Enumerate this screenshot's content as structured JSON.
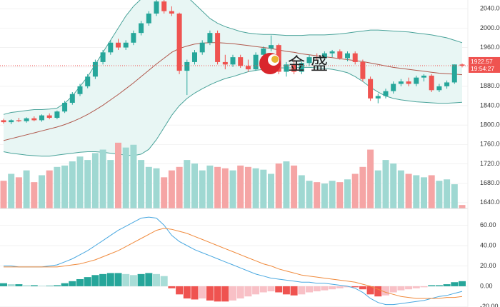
{
  "watermark": "金盛",
  "chart_data": [
    {
      "type": "candlestick",
      "open": [
        1810,
        1806,
        1810,
        1808,
        1814,
        1810,
        1820,
        1815,
        1828,
        1846,
        1864,
        1880,
        1900,
        1930,
        1950,
        1970,
        1960,
        1970,
        1990,
        2010,
        2030,
        2055,
        2035,
        2030,
        1912,
        1930,
        1950,
        1970,
        1990,
        1930,
        1925,
        1940,
        1922,
        1915,
        1945,
        1958,
        1965,
        1910,
        1925,
        1910,
        1928,
        1940,
        1938,
        1948,
        1952,
        1938,
        1948,
        1930,
        1895,
        1855,
        1860,
        1870,
        1885,
        1890,
        1885,
        1898,
        1902,
        1872,
        1880,
        1888,
        1925
      ],
      "high": [
        1813,
        1812,
        1815,
        1816,
        1818,
        1822,
        1824,
        1830,
        1850,
        1868,
        1885,
        1905,
        1935,
        1955,
        1975,
        1978,
        1975,
        1995,
        2015,
        2035,
        2058,
        2060,
        2045,
        2032,
        1935,
        1955,
        1975,
        1995,
        1995,
        1945,
        1945,
        1945,
        1935,
        1950,
        1962,
        1985,
        1968,
        1930,
        1935,
        1932,
        1945,
        1948,
        1952,
        1955,
        1956,
        1952,
        1952,
        1935,
        1900,
        1865,
        1875,
        1890,
        1895,
        1898,
        1902,
        1905,
        1905,
        1885,
        1892,
        1925,
        1927
      ],
      "low": [
        1803,
        1802,
        1806,
        1805,
        1808,
        1807,
        1812,
        1812,
        1825,
        1842,
        1860,
        1876,
        1895,
        1925,
        1945,
        1955,
        1955,
        1965,
        1985,
        2005,
        2025,
        2030,
        2025,
        1905,
        1862,
        1925,
        1945,
        1965,
        1925,
        1915,
        1920,
        1918,
        1910,
        1912,
        1940,
        1952,
        1905,
        1900,
        1905,
        1905,
        1922,
        1935,
        1934,
        1940,
        1935,
        1932,
        1925,
        1890,
        1850,
        1845,
        1855,
        1865,
        1880,
        1880,
        1880,
        1890,
        1868,
        1868,
        1875,
        1885,
        1919
      ],
      "close": [
        1806,
        1810,
        1808,
        1814,
        1810,
        1820,
        1815,
        1828,
        1846,
        1864,
        1880,
        1900,
        1930,
        1950,
        1970,
        1960,
        1970,
        1990,
        2010,
        2030,
        2055,
        2035,
        2030,
        1912,
        1930,
        1950,
        1970,
        1990,
        1930,
        1925,
        1940,
        1922,
        1915,
        1945,
        1958,
        1965,
        1910,
        1925,
        1910,
        1928,
        1940,
        1938,
        1948,
        1952,
        1938,
        1948,
        1930,
        1895,
        1855,
        1860,
        1870,
        1885,
        1890,
        1885,
        1898,
        1902,
        1872,
        1880,
        1888,
        1925,
        1922.57
      ],
      "up_color": "#26a69a",
      "down_color": "#ef5350",
      "bands": {
        "upper": [
          1822,
          1826,
          1828,
          1830,
          1832,
          1832,
          1833,
          1835,
          1845,
          1860,
          1880,
          1900,
          1925,
          1950,
          1975,
          2000,
          2025,
          2045,
          2060,
          2075,
          2085,
          2090,
          2088,
          2080,
          2065,
          2050,
          2035,
          2020,
          2010,
          2003,
          1998,
          1993,
          1990,
          1988,
          1987,
          1987,
          1986,
          1985,
          1985,
          1985,
          1986,
          1986,
          1986,
          1987,
          1988,
          1990,
          1992,
          1994,
          1996,
          1996,
          1995,
          1994,
          1993,
          1992,
          1990,
          1988,
          1986,
          1983,
          1980,
          1975,
          1970
        ],
        "middle": [
          1768,
          1772,
          1776,
          1780,
          1784,
          1788,
          1792,
          1796,
          1801,
          1807,
          1814,
          1822,
          1831,
          1841,
          1852,
          1863,
          1875,
          1887,
          1900,
          1913,
          1926,
          1938,
          1950,
          1958,
          1963,
          1967,
          1969,
          1970,
          1970,
          1969,
          1968,
          1966,
          1964,
          1962,
          1960,
          1958,
          1955,
          1952,
          1950,
          1947,
          1945,
          1943,
          1941,
          1939,
          1937,
          1935,
          1933,
          1931,
          1928,
          1925,
          1922,
          1919,
          1917,
          1915,
          1913,
          1911,
          1909,
          1907,
          1906,
          1905,
          1904
        ],
        "lower": [
          1745,
          1742,
          1740,
          1738,
          1737,
          1736,
          1736,
          1738,
          1740,
          1742,
          1744,
          1745,
          1745,
          1744,
          1742,
          1740,
          1738,
          1737,
          1740,
          1750,
          1770,
          1795,
          1820,
          1840,
          1855,
          1866,
          1875,
          1883,
          1890,
          1896,
          1900,
          1905,
          1910,
          1913,
          1915,
          1917,
          1918,
          1918,
          1918,
          1919,
          1919,
          1918,
          1917,
          1915,
          1912,
          1908,
          1900,
          1890,
          1878,
          1868,
          1860,
          1855,
          1852,
          1850,
          1848,
          1847,
          1846,
          1845,
          1845,
          1846,
          1847
        ],
        "color": "#4aa39a",
        "middle_color": "#b0584c",
        "fill": "#e8f6f4"
      },
      "ylim": [
        1628,
        2058
      ],
      "yticks": [
        {
          "value": 2040,
          "label": "2040.00"
        },
        {
          "value": 2000,
          "label": "2000.00"
        },
        {
          "value": 1960,
          "label": "1960.00"
        },
        {
          "value": 1920,
          "label": "1920.00"
        },
        {
          "value": 1880,
          "label": "1880.00"
        },
        {
          "value": 1840,
          "label": "1840.00"
        },
        {
          "value": 1800,
          "label": "1800.00"
        },
        {
          "value": 1760,
          "label": "1760.00"
        },
        {
          "value": 1720,
          "label": "1720.00"
        },
        {
          "value": 1680,
          "label": "1680.00"
        },
        {
          "value": 1640,
          "label": "1640.00"
        }
      ],
      "grid": true,
      "last_price": 1922.57,
      "countdown": "19:54:27"
    },
    {
      "type": "bar",
      "values": [
        40,
        50,
        45,
        55,
        38,
        48,
        55,
        60,
        62,
        68,
        75,
        70,
        80,
        85,
        70,
        95,
        88,
        92,
        70,
        60,
        58,
        45,
        55,
        60,
        70,
        65,
        55,
        62,
        60,
        58,
        55,
        62,
        60,
        58,
        56,
        50,
        65,
        68,
        62,
        48,
        40,
        38,
        36,
        40,
        38,
        42,
        50,
        60,
        85,
        55,
        70,
        65,
        55,
        50,
        48,
        45,
        48,
        40,
        42,
        35,
        5
      ],
      "up_color": "#9fd8d2",
      "down_color": "#f5a5a5",
      "ylim": [
        0,
        100
      ]
    },
    {
      "type": "macd",
      "histogram": [
        3,
        2,
        2,
        1,
        1,
        0.5,
        0.5,
        1,
        3,
        5,
        7,
        9,
        11,
        12,
        13,
        13,
        12,
        11,
        12,
        13,
        12,
        10,
        -2,
        -8,
        -12,
        -13,
        -12,
        -14,
        -15,
        -15,
        -14,
        -12,
        -10,
        -8,
        -6,
        -5,
        -6,
        -8,
        -9,
        -8,
        -6,
        -5,
        -4,
        -3,
        -2,
        -1,
        -1,
        -3,
        -8,
        -10,
        -9,
        -6,
        -4,
        -3,
        -2,
        -1,
        1,
        1,
        2,
        4,
        5
      ],
      "dif": [
        20,
        20,
        19,
        19,
        19,
        19,
        20,
        21,
        24,
        27,
        31,
        35,
        40,
        45,
        50,
        55,
        59,
        63,
        67,
        68,
        67,
        60,
        50,
        44,
        40,
        36,
        33,
        30,
        27,
        24,
        21,
        18,
        15,
        12,
        10,
        8,
        7,
        6,
        5,
        4,
        4,
        3,
        3,
        2,
        1,
        0,
        -2,
        -6,
        -12,
        -16,
        -18,
        -18,
        -17,
        -16,
        -15,
        -14,
        -12,
        -10,
        -9,
        -7,
        -5
      ],
      "dea": [
        19,
        19,
        19,
        19,
        19,
        19,
        19,
        19,
        20,
        21,
        22,
        24,
        26,
        29,
        32,
        35,
        39,
        43,
        47,
        51,
        55,
        57,
        56,
        54,
        52,
        49,
        46,
        43,
        40,
        37,
        34,
        31,
        28,
        25,
        22,
        20,
        17,
        15,
        13,
        11,
        10,
        9,
        8,
        7,
        6,
        5,
        4,
        2,
        0,
        -3,
        -6,
        -8,
        -10,
        -11,
        -12,
        -12,
        -12,
        -12,
        -11,
        -11,
        -10
      ],
      "dif_color": "#4aa8e0",
      "dea_color": "#f08a3c",
      "up_strong": "#26a69a",
      "up_light": "#a8ddd7",
      "down_strong": "#ef5350",
      "down_light": "#f8c0c6",
      "ylim": [
        -20.4,
        76.5
      ],
      "yticks": [
        {
          "value": 60,
          "label": "60.00"
        },
        {
          "value": 40,
          "label": "40.00"
        },
        {
          "value": 20,
          "label": "20.00"
        },
        {
          "value": 0,
          "label": "0.00"
        },
        {
          "value": -20,
          "label": "-20.00"
        }
      ],
      "grid": true
    }
  ]
}
